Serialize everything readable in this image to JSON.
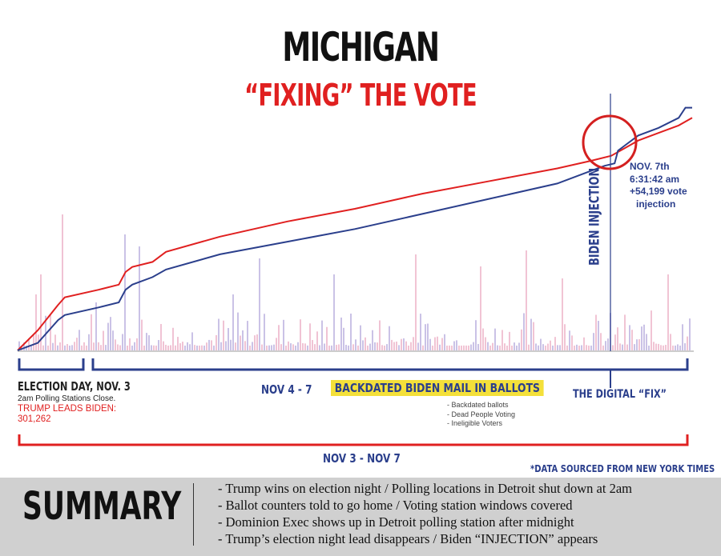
{
  "header": {
    "title": "MICHIGAN",
    "subtitle": "“FIXING” THE VOTE"
  },
  "annotations": {
    "injection_label": "BIDEN INJECTION",
    "injection_note": [
      "NOV. 7th",
      "6:31:42 am",
      "+54,199 vote",
      "injection"
    ],
    "election_day_title": "ELECTION DAY, NOV. 3",
    "election_day_note": "2am Polling Stations Close.",
    "trump_leads": "TRUMP LEADS BIDEN:",
    "trump_lead_value": "301,262",
    "nov4_7": "NOV 4 - 7",
    "backdated_title": "BACKDATED BIDEN MAIL IN BALLOTS",
    "backdated_items": [
      "- Backdated ballots",
      "- Dead People Voting",
      "- Ineligible Voters"
    ],
    "digital_fix": "THE DIGITAL “FIX”",
    "nov3_7": "NOV 3 - NOV 7",
    "source": "*DATA SOURCED FROM NEW YORK TIMES"
  },
  "summary": {
    "title": "SUMMARY",
    "items": [
      "- Trump wins on election night / Polling locations in Detroit shut down at 2am",
      "- Ballot counters told to go home / Voting station windows covered",
      "- Dominion Exec shows up in Detroit polling station after midnight",
      "- Trump’s election night lead disappears / Biden “INJECTION” appears"
    ]
  },
  "colors": {
    "trump": "#e02020",
    "biden": "#2b3f8c",
    "highlight": "#f4e03a",
    "summary_bg": "#d0d0d0"
  },
  "chart_data": {
    "type": "line",
    "x_range": [
      0,
      100
    ],
    "y_range": [
      0,
      100
    ],
    "grid": false,
    "legend": "none",
    "series": [
      {
        "color": "#e02020",
        "x": [
          0,
          3,
          6,
          7,
          12,
          15,
          16,
          17,
          20,
          22,
          30,
          40,
          50,
          60,
          70,
          80,
          85,
          88,
          90,
          92,
          95,
          98,
          100
        ],
        "values": [
          0,
          8,
          18,
          21,
          24,
          26,
          31,
          33,
          35,
          39,
          45,
          51,
          56,
          62,
          67,
          72,
          75,
          77,
          80,
          83,
          86,
          89,
          92
        ]
      },
      {
        "color": "#2b3f8c",
        "x": [
          0,
          3,
          6,
          7,
          12,
          15,
          16,
          17,
          20,
          22,
          30,
          40,
          50,
          60,
          70,
          80,
          85,
          87,
          88.5,
          89,
          90,
          92,
          95,
          98,
          99,
          100
        ],
        "values": [
          0,
          3,
          12,
          14,
          17,
          19,
          24,
          26,
          29,
          32,
          38,
          43,
          48,
          54,
          60,
          66,
          71,
          73,
          74,
          79,
          81,
          85,
          88,
          92,
          96,
          96
        ]
      }
    ]
  }
}
